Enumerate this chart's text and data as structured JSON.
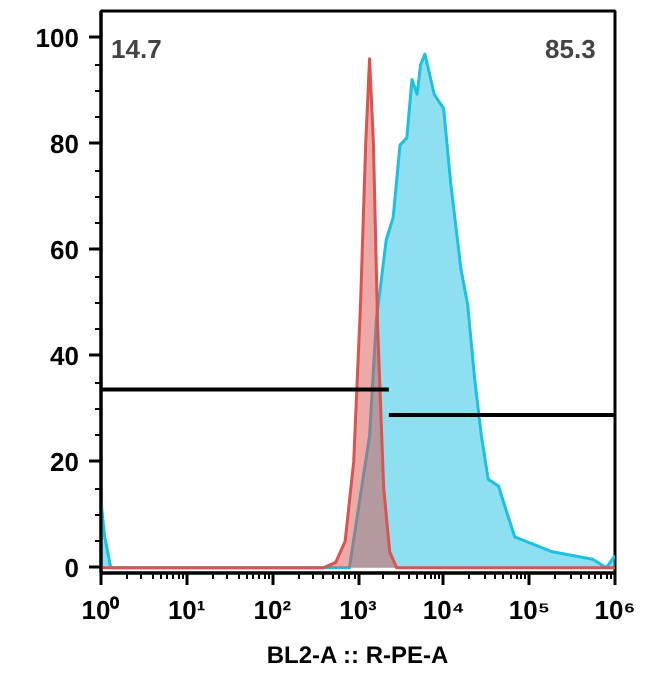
{
  "chart_data": {
    "type": "area",
    "xlabel": "BL2-A :: R-PE-A",
    "log": "x",
    "xlim": [
      1,
      1000000
    ],
    "ylim": [
      -1,
      105
    ],
    "xticks": [
      {
        "value": 1,
        "label": "10⁰"
      },
      {
        "value": 10,
        "label": "10¹"
      },
      {
        "value": 100,
        "label": "10²"
      },
      {
        "value": 1000,
        "label": "10³"
      },
      {
        "value": 10000,
        "label": "10⁴"
      },
      {
        "value": 100000,
        "label": "10⁵"
      },
      {
        "value": 1000000,
        "label": "10⁶"
      }
    ],
    "yticks": [
      0,
      20,
      40,
      60,
      80,
      100
    ],
    "grid": false,
    "series": [
      {
        "color": "#1ec0e0",
        "x": [
          1,
          1.1,
          1.3,
          794,
          1365,
          1641,
          2138,
          2570,
          3090,
          3715,
          4266,
          4898,
          5370,
          6026,
          6761,
          7762,
          10000,
          12023,
          15849,
          19055,
          22909,
          27542,
          33113,
          43652,
          52481,
          67608,
          186209,
          549541,
          794328,
          1000000
        ],
        "values": [
          12.6,
          6,
          0,
          0,
          24.9,
          46.9,
          61.9,
          66.0,
          79.7,
          81.1,
          92.1,
          89.3,
          94.8,
          96.9,
          93.5,
          89.3,
          86.6,
          72.9,
          56.5,
          49.6,
          35.9,
          24.9,
          16.7,
          15.4,
          11.3,
          5.8,
          3.0,
          1.6,
          0,
          2.3
        ]
      },
      {
        "color": "#d9534f",
        "x": [
          1,
          398,
          550,
          708,
          891,
          1072,
          1230,
          1365,
          1514,
          1698,
          1995,
          2344,
          2818,
          1000000
        ],
        "values": [
          0,
          0,
          1,
          5,
          20,
          50,
          80,
          96,
          80,
          45,
          15,
          3,
          0,
          0
        ]
      },
      {
        "type": "line",
        "color": "#000000",
        "x": [
          1,
          2291
        ],
        "values": [
          33.6,
          33.6
        ]
      },
      {
        "type": "line",
        "color": "#000000",
        "x": [
          2291,
          1000000
        ],
        "values": [
          28.8,
          28.8
        ]
      }
    ],
    "annotations": [
      "14.7",
      "85.3"
    ]
  }
}
